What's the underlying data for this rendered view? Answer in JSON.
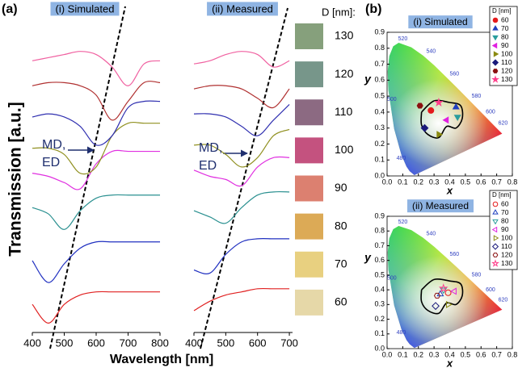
{
  "chart_data": [
    {
      "type": "line",
      "panel": "(a)",
      "title": "(i) Simulated",
      "xlabel": "Wavelength [nm]",
      "ylabel": "Transmission [a.u.]",
      "annotation": [
        "MD,",
        "ED"
      ],
      "x": [
        400,
        450,
        500,
        550,
        600,
        650,
        700,
        750,
        800
      ],
      "xlim": [
        400,
        800
      ],
      "xticks": [
        400,
        500,
        600,
        700,
        800
      ],
      "ylim": [
        0,
        10
      ],
      "series": [
        {
          "name": "60",
          "color": "#e02020",
          "values": [
            0.9,
            0.3,
            0.9,
            1.2,
            1.3,
            1.3,
            1.3,
            1.3,
            1.3
          ]
        },
        {
          "name": "70",
          "color": "#2030c0",
          "values": [
            2.3,
            1.6,
            2.2,
            2.7,
            2.9,
            2.9,
            2.9,
            2.9,
            2.9
          ]
        },
        {
          "name": "80",
          "color": "#2a9090",
          "values": [
            4.0,
            3.8,
            3.3,
            3.9,
            4.3,
            4.4,
            4.4,
            4.4,
            4.4
          ]
        },
        {
          "name": "90",
          "color": "#e030e0",
          "values": [
            5.1,
            5.0,
            4.8,
            4.6,
            5.4,
            5.8,
            5.8,
            5.8,
            5.8
          ]
        },
        {
          "name": "100",
          "color": "#909020",
          "values": [
            5.9,
            5.9,
            5.7,
            5.1,
            5.3,
            6.3,
            6.7,
            6.7,
            6.7
          ]
        },
        {
          "name": "110",
          "color": "#3030b0",
          "values": [
            6.9,
            7.0,
            6.9,
            6.6,
            6.0,
            6.3,
            7.2,
            7.4,
            7.4
          ]
        },
        {
          "name": "120",
          "color": "#b03030",
          "values": [
            7.9,
            8.0,
            8.0,
            7.9,
            7.6,
            6.8,
            7.4,
            8.0,
            8.0
          ]
        },
        {
          "name": "130",
          "color": "#f060a0",
          "values": [
            8.7,
            8.8,
            8.9,
            9.0,
            8.9,
            8.5,
            7.9,
            8.6,
            8.7
          ]
        }
      ]
    },
    {
      "type": "line",
      "title": "(ii) Measured",
      "annotation": [
        "MD,",
        "ED"
      ],
      "x": [
        400,
        450,
        500,
        550,
        600,
        650,
        700
      ],
      "xlim": [
        400,
        710
      ],
      "xticks": [
        400,
        500,
        600,
        700
      ],
      "ylim": [
        0,
        10
      ],
      "swatch_title": "D [nm]:",
      "swatches": [
        {
          "label": "130",
          "color": "#86a07c"
        },
        {
          "label": "120",
          "color": "#77968a"
        },
        {
          "label": "110",
          "color": "#8c6a82"
        },
        {
          "label": "100",
          "color": "#c4527f"
        },
        {
          "label": "90",
          "color": "#dc8070"
        },
        {
          "label": "80",
          "color": "#dcaa56"
        },
        {
          "label": "70",
          "color": "#e8d080"
        },
        {
          "label": "60",
          "color": "#e6d8a8"
        }
      ],
      "series": [
        {
          "name": "60",
          "color": "#e02020",
          "values": [
            0.7,
            1.0,
            1.2,
            1.3,
            1.4,
            1.4,
            1.4
          ]
        },
        {
          "name": "70",
          "color": "#2030c0",
          "values": [
            2.0,
            1.9,
            2.5,
            2.9,
            3.0,
            3.0,
            3.0
          ]
        },
        {
          "name": "80",
          "color": "#2a9090",
          "values": [
            3.9,
            3.7,
            3.5,
            4.0,
            4.4,
            4.5,
            4.5
          ]
        },
        {
          "name": "90",
          "color": "#e030e0",
          "values": [
            5.2,
            5.0,
            4.9,
            4.7,
            5.3,
            5.6,
            5.6
          ]
        },
        {
          "name": "100",
          "color": "#909020",
          "values": [
            6.0,
            6.0,
            5.7,
            5.3,
            5.6,
            6.3,
            6.5
          ]
        },
        {
          "name": "110",
          "color": "#3030b0",
          "values": [
            7.0,
            7.0,
            6.9,
            6.6,
            6.3,
            6.8,
            7.3
          ]
        },
        {
          "name": "120",
          "color": "#b03030",
          "values": [
            7.8,
            7.9,
            7.9,
            7.8,
            7.5,
            7.2,
            7.8
          ]
        },
        {
          "name": "130",
          "color": "#f060a0",
          "values": [
            8.6,
            8.7,
            8.9,
            9.0,
            8.9,
            8.5,
            8.7
          ]
        }
      ]
    },
    {
      "type": "scatter",
      "panel": "(b)",
      "title": "(i) Simulated",
      "xlabel": "x",
      "ylabel": "y",
      "filled": true,
      "legend_title": "D [nm]",
      "locus_labels": [
        "480",
        "500",
        "520",
        "540",
        "560",
        "580",
        "600",
        "620"
      ],
      "xlim": [
        0,
        0.8
      ],
      "ylim": [
        0,
        0.9
      ],
      "xticks": [
        {
          "value": 0,
          "label": "0.0"
        },
        0.1,
        0.2,
        0.3,
        0.4,
        0.5,
        0.6,
        0.7,
        0.8
      ],
      "yticks": [
        {
          "value": 0,
          "label": "0.0"
        },
        0.1,
        0.2,
        0.3,
        0.4,
        0.5,
        0.6,
        0.7,
        0.8,
        0.9
      ],
      "series": [
        {
          "name": "60",
          "color": "#e41a1c",
          "marker": "circle",
          "x": [
            0.28
          ],
          "y": [
            0.41
          ]
        },
        {
          "name": "70",
          "color": "#1f3fbf",
          "marker": "triangle-up",
          "x": [
            0.44
          ],
          "y": [
            0.43
          ]
        },
        {
          "name": "80",
          "color": "#2a9d9d",
          "marker": "triangle-down",
          "x": [
            0.45
          ],
          "y": [
            0.37
          ]
        },
        {
          "name": "90",
          "color": "#e020e0",
          "marker": "triangle-left",
          "x": [
            0.38
          ],
          "y": [
            0.35
          ]
        },
        {
          "name": "100",
          "color": "#8a8a10",
          "marker": "triangle-right",
          "x": [
            0.33
          ],
          "y": [
            0.26
          ]
        },
        {
          "name": "110",
          "color": "#1a1a7a",
          "marker": "diamond",
          "x": [
            0.24
          ],
          "y": [
            0.3
          ]
        },
        {
          "name": "120",
          "color": "#8b1010",
          "marker": "hexagon",
          "x": [
            0.21
          ],
          "y": [
            0.44
          ]
        },
        {
          "name": "130",
          "color": "#ff3d8a",
          "marker": "star",
          "x": [
            0.33
          ],
          "y": [
            0.46
          ]
        }
      ]
    },
    {
      "type": "scatter",
      "title": "(ii) Measured",
      "xlabel": "x",
      "ylabel": "y",
      "filled": false,
      "legend_title": "D [nm]",
      "locus_labels": [
        "480",
        "500",
        "520",
        "540",
        "560",
        "580",
        "600",
        "620"
      ],
      "xlim": [
        0,
        0.8
      ],
      "ylim": [
        0,
        0.9
      ],
      "xticks": [
        {
          "value": 0,
          "label": "0.0"
        },
        0.1,
        0.2,
        0.3,
        0.4,
        0.5,
        0.6,
        0.7,
        0.8
      ],
      "yticks": [
        {
          "value": 0,
          "label": "0.0"
        },
        0.1,
        0.2,
        0.3,
        0.4,
        0.5,
        0.6,
        0.7,
        0.8,
        0.9
      ],
      "series": [
        {
          "name": "60",
          "color": "#e41a1c",
          "marker": "circle",
          "x": [
            0.39
          ],
          "y": [
            0.38
          ]
        },
        {
          "name": "70",
          "color": "#1f3fbf",
          "marker": "triangle-up",
          "x": [
            0.34
          ],
          "y": [
            0.37
          ]
        },
        {
          "name": "80",
          "color": "#2a9d9d",
          "marker": "triangle-down",
          "x": [
            0.36
          ],
          "y": [
            0.4
          ]
        },
        {
          "name": "90",
          "color": "#e020e0",
          "marker": "triangle-left",
          "x": [
            0.43
          ],
          "y": [
            0.39
          ]
        },
        {
          "name": "100",
          "color": "#8a8a10",
          "marker": "triangle-right",
          "x": [
            0.39
          ],
          "y": [
            0.3
          ]
        },
        {
          "name": "110",
          "color": "#1a1a7a",
          "marker": "diamond",
          "x": [
            0.31
          ],
          "y": [
            0.29
          ]
        },
        {
          "name": "120",
          "color": "#8b1010",
          "marker": "hexagon",
          "x": [
            0.32
          ],
          "y": [
            0.36
          ]
        },
        {
          "name": "130",
          "color": "#ff3d8a",
          "marker": "star",
          "x": [
            0.36
          ],
          "y": [
            0.41
          ]
        }
      ]
    }
  ]
}
